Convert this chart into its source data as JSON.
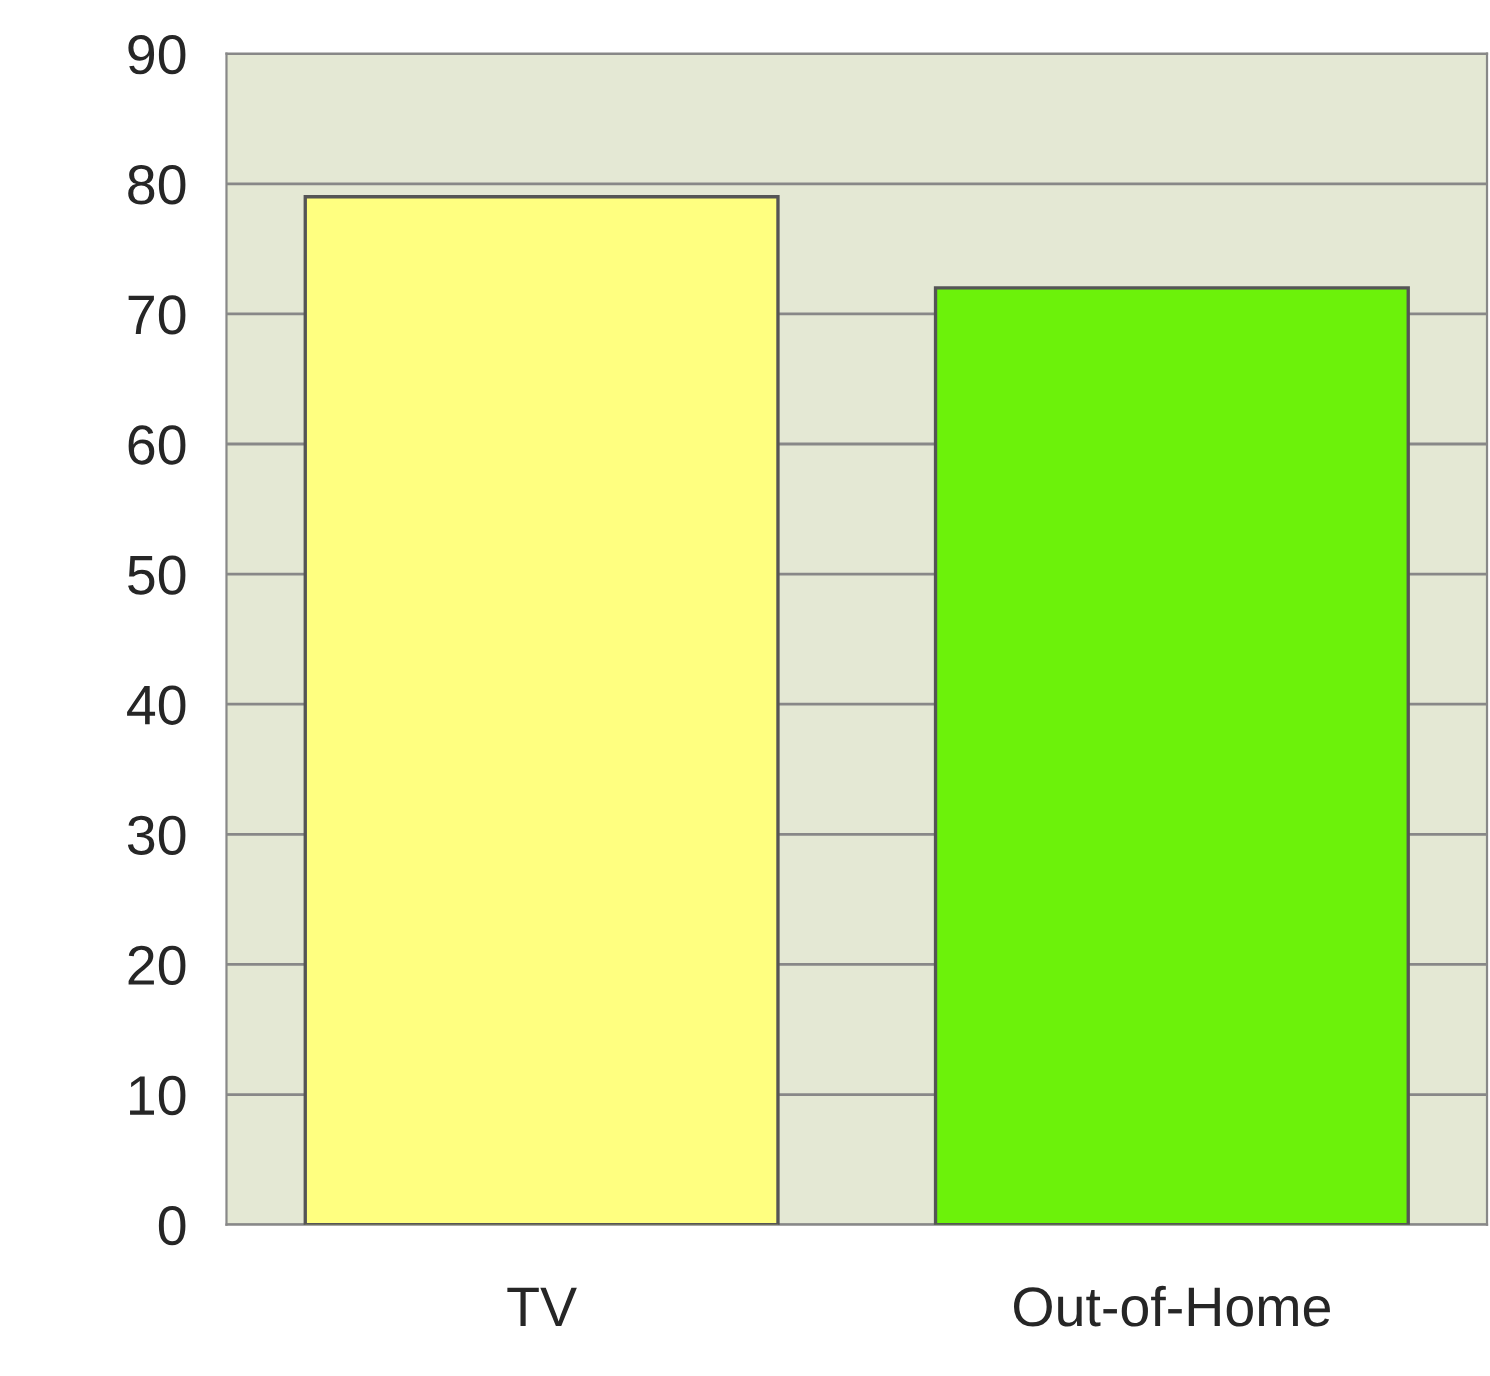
{
  "chart_data": {
    "type": "bar",
    "categories": [
      "TV",
      "Out-of-Home"
    ],
    "values": [
      79,
      72
    ],
    "colors": [
      "#ffff80",
      "#6cf20a"
    ],
    "ylim": [
      0,
      90
    ],
    "yticks": [
      0,
      10,
      20,
      30,
      40,
      50,
      60,
      70,
      80,
      90
    ],
    "grid": "y",
    "legend": false
  }
}
